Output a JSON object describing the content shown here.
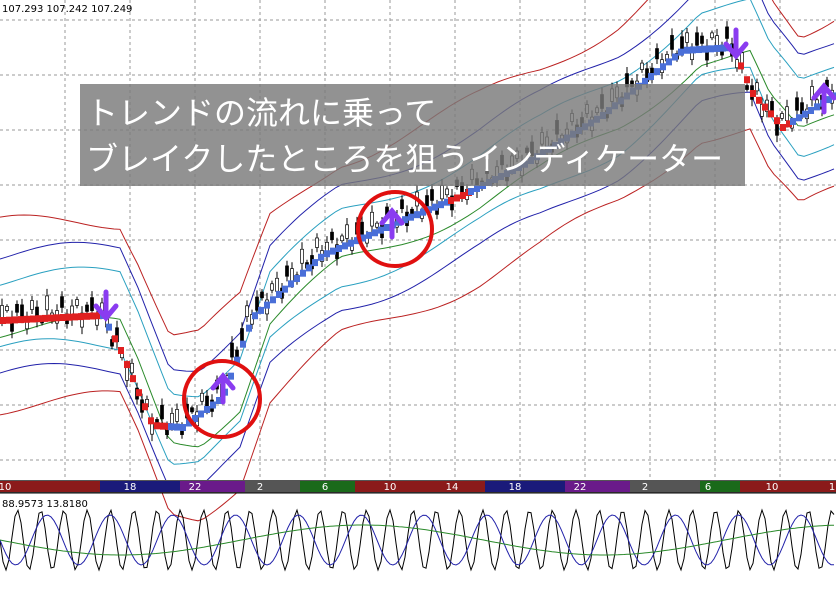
{
  "quote": "107.293 107.242 107.249",
  "overlay": {
    "line1": "トレンドの流れに乗って",
    "line2": "ブレイクしたところを狙うインディケーター"
  },
  "time_labels": [
    "10",
    "18",
    "22",
    "2",
    "6",
    "10",
    "14",
    "18",
    "22",
    "2",
    "6",
    "10",
    "1"
  ],
  "indicator_label": "88.9573 13.8180"
}
